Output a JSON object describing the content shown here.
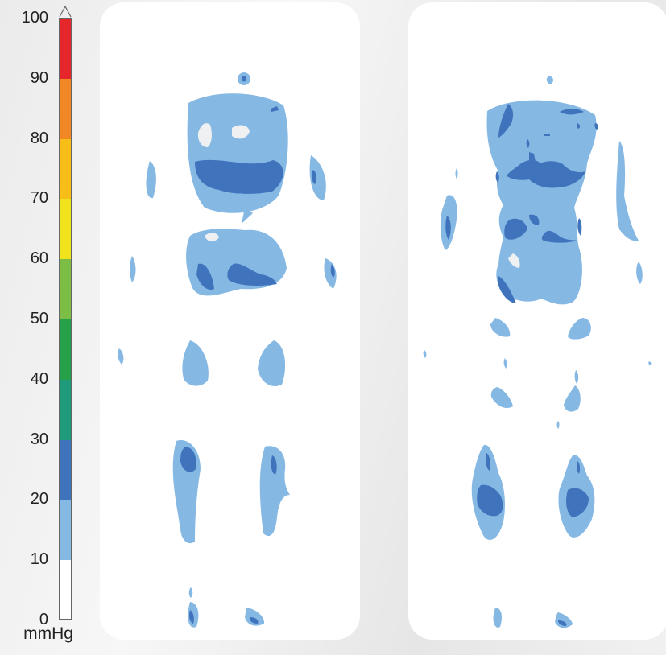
{
  "scale": {
    "unit": "mmHg",
    "min": 0,
    "max": 100,
    "ticks": [
      "0",
      "10",
      "20",
      "30",
      "40",
      "50",
      "60",
      "70",
      "80",
      "90",
      "100"
    ],
    "bands": [
      {
        "from": 0,
        "to": 10,
        "color": "#ffffff"
      },
      {
        "from": 10,
        "to": 20,
        "color": "#86b8e4"
      },
      {
        "from": 20,
        "to": 30,
        "color": "#3f74bd"
      },
      {
        "from": 30,
        "to": 40,
        "color": "#1f9a7a"
      },
      {
        "from": 40,
        "to": 50,
        "color": "#27a04a"
      },
      {
        "from": 50,
        "to": 60,
        "color": "#7bbd45"
      },
      {
        "from": 60,
        "to": 70,
        "color": "#f0e31e"
      },
      {
        "from": 70,
        "to": 80,
        "color": "#f6be16"
      },
      {
        "from": 80,
        "to": 90,
        "color": "#f28725"
      },
      {
        "from": 90,
        "to": 100,
        "color": "#e5262a"
      }
    ]
  },
  "colors": {
    "level_10_20": "#86b8e4",
    "level_20_30": "#3f74bd",
    "level_0_10": "#eef0f2",
    "panel": "#ffffff"
  },
  "panels": [
    {
      "name": "pressure-map-left"
    },
    {
      "name": "pressure-map-right"
    }
  ]
}
